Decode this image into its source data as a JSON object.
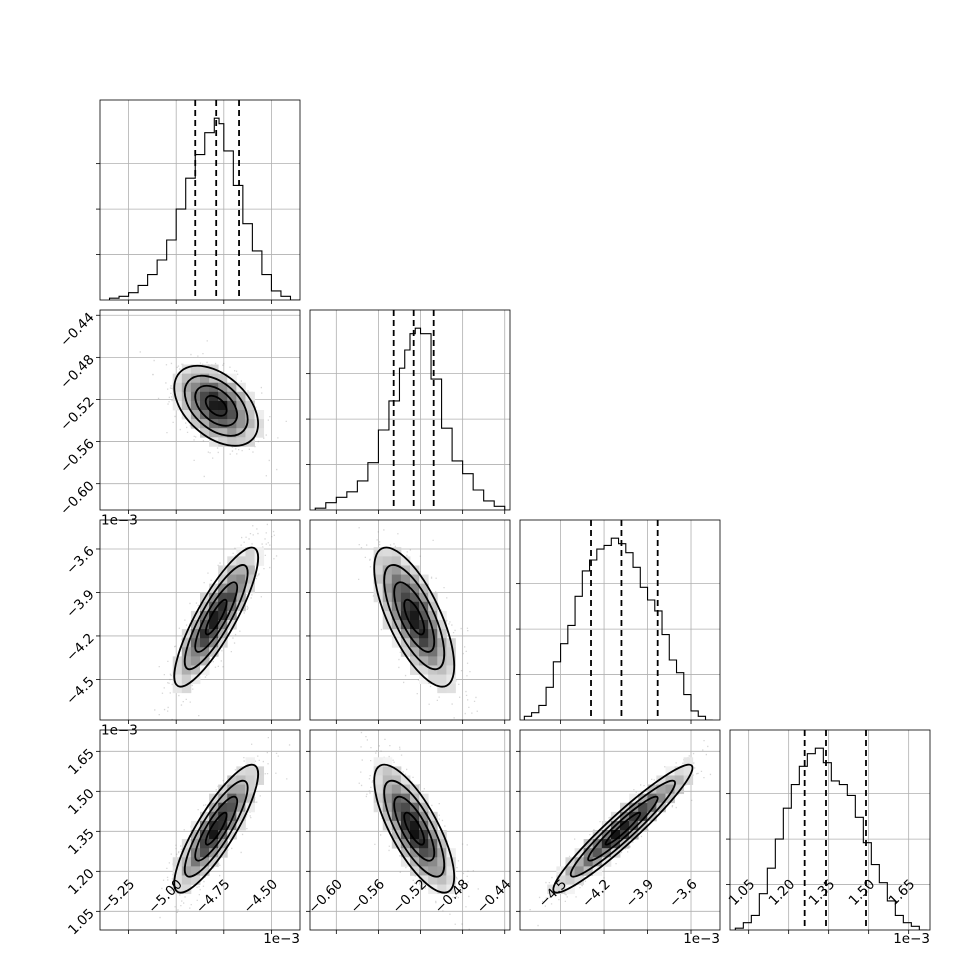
{
  "chart_data": {
    "type": "corner",
    "parameters": [
      {
        "exp_label": "",
        "range": [
          -5.4,
          -4.35
        ],
        "ticks": [
          -5.25,
          -5.0,
          -4.75,
          -4.5
        ],
        "tick_labels": [
          "−5.25",
          "−5.00",
          "−4.75",
          "−4.50"
        ],
        "quantiles": [
          -4.9,
          -4.79,
          -4.67
        ],
        "center": -4.79,
        "sd": 0.11
      },
      {
        "exp_label": "1e−3",
        "range": [
          -0.625,
          -0.435
        ],
        "ticks": [
          -0.6,
          -0.56,
          -0.52,
          -0.48,
          -0.44
        ],
        "tick_labels": [
          "−0.60",
          "−0.56",
          "−0.52",
          "−0.48",
          "−0.44"
        ],
        "quantiles": [
          -0.5455,
          -0.5265,
          -0.5075
        ],
        "center": -0.526,
        "sd": 0.019
      },
      {
        "exp_label": "1e−3",
        "range": [
          -4.78,
          -3.4
        ],
        "ticks": [
          -4.5,
          -4.2,
          -3.9,
          -3.6
        ],
        "tick_labels": [
          "−4.5",
          "−4.2",
          "−3.9",
          "−3.6"
        ],
        "quantiles": [
          -4.29,
          -4.08,
          -3.83
        ],
        "center": -4.07,
        "sd": 0.24
      },
      {
        "exp_label": "",
        "range": [
          0.98,
          1.73
        ],
        "ticks": [
          1.05,
          1.2,
          1.35,
          1.5,
          1.65
        ],
        "tick_labels": [
          "1.05",
          "1.20",
          "1.35",
          "1.50",
          "1.65"
        ],
        "quantiles": [
          1.26,
          1.34,
          1.49
        ],
        "center": 1.36,
        "sd": 0.12
      }
    ],
    "bottom_exp_labels": [
      "1e−3",
      "",
      "1e−3",
      "1e−3"
    ],
    "histograms": [
      {
        "bins": [
          -5.35,
          -5.3,
          -5.25,
          -5.2,
          -5.15,
          -5.1,
          -5.05,
          -5.0,
          -4.95,
          -4.9,
          -4.85,
          -4.8,
          -4.775,
          -4.75,
          -4.7,
          -4.65,
          -4.6,
          -4.55,
          -4.5,
          -4.45,
          -4.4
        ],
        "counts": [
          0.01,
          0.02,
          0.04,
          0.08,
          0.14,
          0.22,
          0.33,
          0.5,
          0.67,
          0.8,
          0.92,
          1.0,
          0.97,
          0.82,
          0.63,
          0.42,
          0.27,
          0.14,
          0.05,
          0.02,
          0
        ]
      },
      {
        "bins": [
          -0.62,
          -0.61,
          -0.6,
          -0.59,
          -0.58,
          -0.57,
          -0.56,
          -0.55,
          -0.54,
          -0.535,
          -0.53,
          -0.525,
          -0.52,
          -0.51,
          -0.5,
          -0.49,
          -0.48,
          -0.47,
          -0.46,
          -0.45,
          -0.44
        ],
        "counts": [
          0.01,
          0.04,
          0.07,
          0.1,
          0.16,
          0.26,
          0.44,
          0.6,
          0.78,
          0.88,
          0.97,
          1.0,
          0.97,
          0.72,
          0.45,
          0.27,
          0.2,
          0.11,
          0.05,
          0.02,
          0
        ]
      },
      {
        "bins": [
          -4.75,
          -4.7,
          -4.65,
          -4.6,
          -4.55,
          -4.5,
          -4.45,
          -4.4,
          -4.35,
          -4.3,
          -4.25,
          -4.2,
          -4.15,
          -4.1,
          -4.05,
          -4.0,
          -3.95,
          -3.9,
          -3.85,
          -3.8,
          -3.75,
          -3.7,
          -3.65,
          -3.6,
          -3.55,
          -3.5,
          -3.45
        ],
        "counts": [
          0.02,
          0.04,
          0.08,
          0.18,
          0.32,
          0.42,
          0.52,
          0.68,
          0.82,
          0.88,
          0.94,
          0.96,
          1.0,
          0.97,
          0.92,
          0.84,
          0.73,
          0.66,
          0.6,
          0.47,
          0.33,
          0.26,
          0.14,
          0.05,
          0.02,
          0
        ]
      },
      {
        "bins": [
          1.0,
          1.03,
          1.06,
          1.09,
          1.12,
          1.15,
          1.18,
          1.21,
          1.24,
          1.27,
          1.3,
          1.33,
          1.36,
          1.39,
          1.42,
          1.45,
          1.48,
          1.51,
          1.54,
          1.57,
          1.6,
          1.63,
          1.66,
          1.69,
          1.72
        ],
        "counts": [
          0.01,
          0.04,
          0.08,
          0.2,
          0.34,
          0.5,
          0.67,
          0.8,
          0.9,
          0.97,
          1.0,
          0.92,
          0.82,
          0.8,
          0.74,
          0.62,
          0.48,
          0.36,
          0.26,
          0.16,
          0.08,
          0.04,
          0.02,
          0
        ]
      }
    ],
    "correlations": {
      "1-0": -0.45,
      "2-0": 0.85,
      "2-1": -0.7,
      "3-0": 0.85,
      "3-1": -0.75,
      "3-2": 0.95
    },
    "contour_levels": 3,
    "grid": true,
    "colors": {
      "density": "#000000",
      "scatter": "#8c8c8c",
      "grid": "#b0b0b0",
      "contour": "#000000"
    }
  }
}
